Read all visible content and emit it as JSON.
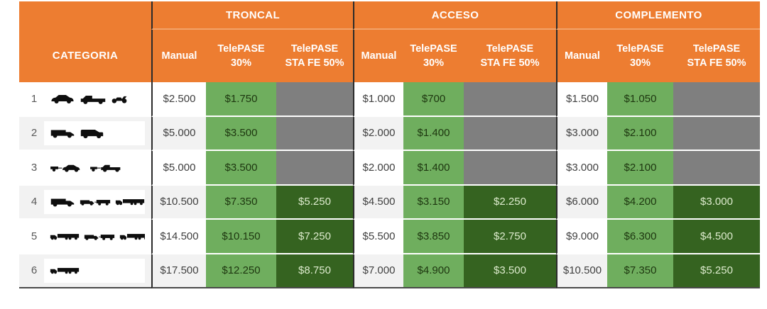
{
  "header": {
    "category_label": "CATEGORIA",
    "sections": [
      {
        "label": "TRONCAL"
      },
      {
        "label": "ACCESO"
      },
      {
        "label": "COMPLEMENTO"
      }
    ],
    "sub_columns": [
      {
        "label": "Manual",
        "sublabel": ""
      },
      {
        "label": "TelePASE",
        "sublabel": "30%"
      },
      {
        "label": "TelePASE",
        "sublabel": "STA FE 50%"
      }
    ]
  },
  "table": {
    "section_keys": [
      "troncal",
      "acceso",
      "complemento"
    ],
    "rows": [
      {
        "number": "1",
        "icons": [
          "car",
          "pickup",
          "motorcycle"
        ],
        "troncal": [
          "$2.500",
          "$1.750",
          null
        ],
        "acceso": [
          "$1.000",
          "$700",
          null
        ],
        "complemento": [
          "$1.500",
          "$1.050",
          null
        ]
      },
      {
        "number": "2",
        "icons": [
          "box-truck",
          "van"
        ],
        "troncal": [
          "$5.000",
          "$3.500",
          null
        ],
        "acceso": [
          "$2.000",
          "$1.400",
          null
        ],
        "complemento": [
          "$3.000",
          "$2.100",
          null
        ]
      },
      {
        "number": "3",
        "icons": [
          "car-trailer",
          "pickup-trailer"
        ],
        "troncal": [
          "$5.000",
          "$3.500",
          null
        ],
        "acceso": [
          "$2.000",
          "$1.400",
          null
        ],
        "complemento": [
          "$3.000",
          "$2.100",
          null
        ]
      },
      {
        "number": "4",
        "icons": [
          "box-truck",
          "truck-trailer",
          "semi"
        ],
        "troncal": [
          "$10.500",
          "$7.350",
          "$5.250"
        ],
        "acceso": [
          "$4.500",
          "$3.150",
          "$2.250"
        ],
        "complemento": [
          "$6.000",
          "$4.200",
          "$3.000"
        ]
      },
      {
        "number": "5",
        "icons": [
          "semi",
          "truck-trailer",
          "semi"
        ],
        "troncal": [
          "$14.500",
          "$10.150",
          "$7.250"
        ],
        "acceso": [
          "$5.500",
          "$3.850",
          "$2.750"
        ],
        "complemento": [
          "$9.000",
          "$6.300",
          "$4.500"
        ]
      },
      {
        "number": "6",
        "icons": [
          "semi"
        ],
        "troncal": [
          "$17.500",
          "$12.250",
          "$8.750"
        ],
        "acceso": [
          "$7.000",
          "$4.900",
          "$3.500"
        ],
        "complemento": [
          "$10.500",
          "$7.350",
          "$5.250"
        ]
      }
    ]
  },
  "colors": {
    "header_orange": "#ED7D31",
    "header_divider_orange": "#F2A269",
    "telepase30_green": "#6FAE5E",
    "telepase50_dark_green": "#356320",
    "empty_cell_gray": "#7F7F7F",
    "row_stripe": "#F2F2F2"
  },
  "chart_data": {
    "type": "table",
    "title": "",
    "unit": "$",
    "column_groups": [
      "TRONCAL",
      "ACCESO",
      "COMPLEMENTO"
    ],
    "columns": [
      "CATEGORIA",
      "TRONCAL Manual",
      "TRONCAL TelePASE 30%",
      "TRONCAL TelePASE STA FE 50%",
      "ACCESO Manual",
      "ACCESO TelePASE 30%",
      "ACCESO TelePASE STA FE 50%",
      "COMPLEMENTO Manual",
      "COMPLEMENTO TelePASE 30%",
      "COMPLEMENTO TelePASE STA FE 50%"
    ],
    "rows": [
      [
        "1",
        2500,
        1750,
        null,
        1000,
        700,
        null,
        1500,
        1050,
        null
      ],
      [
        "2",
        5000,
        3500,
        null,
        2000,
        1400,
        null,
        3000,
        2100,
        null
      ],
      [
        "3",
        5000,
        3500,
        null,
        2000,
        1400,
        null,
        3000,
        2100,
        null
      ],
      [
        "4",
        10500,
        7350,
        5250,
        4500,
        3150,
        2250,
        6000,
        4200,
        3000
      ],
      [
        "5",
        14500,
        10150,
        7250,
        5500,
        3850,
        2750,
        9000,
        6300,
        4500
      ],
      [
        "6",
        17500,
        12250,
        8750,
        7000,
        4900,
        3500,
        10500,
        7350,
        5250
      ]
    ]
  }
}
